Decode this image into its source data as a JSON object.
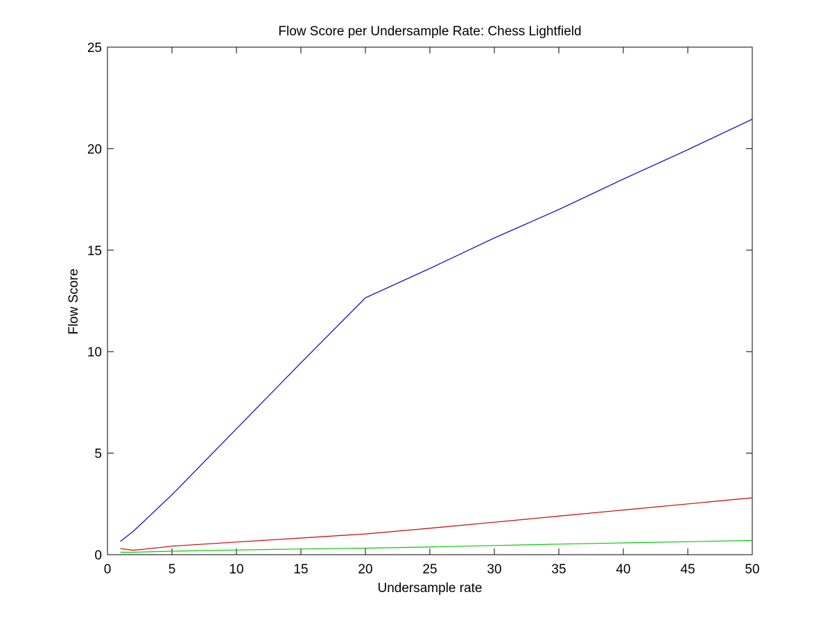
{
  "chart_data": {
    "type": "line",
    "title": "Flow Score per Undersample Rate: Chess Lightfield",
    "xlabel": "Undersample rate",
    "ylabel": "Flow Score",
    "xlim": [
      0,
      50
    ],
    "ylim": [
      0,
      25
    ],
    "xticks": [
      0,
      5,
      10,
      15,
      20,
      25,
      30,
      35,
      40,
      45,
      50
    ],
    "yticks": [
      0,
      5,
      10,
      15,
      20,
      25
    ],
    "grid": false,
    "legend": "none",
    "series": [
      {
        "color": "#0000cc",
        "x": [
          1,
          2,
          3,
          4,
          5,
          10,
          15,
          20,
          25,
          30,
          35,
          40,
          45,
          50
        ],
        "y": [
          0.65,
          1.15,
          1.75,
          2.35,
          2.95,
          6.2,
          9.45,
          12.65,
          14.1,
          15.6,
          17.0,
          18.5,
          19.95,
          21.45
        ]
      },
      {
        "color": "#cc0000",
        "x": [
          1,
          2,
          3,
          5,
          10,
          15,
          20,
          25,
          30,
          35,
          40,
          45,
          50
        ],
        "y": [
          0.3,
          0.22,
          0.28,
          0.42,
          0.62,
          0.82,
          1.02,
          1.3,
          1.6,
          1.9,
          2.2,
          2.5,
          2.8
        ]
      },
      {
        "color": "#00cc00",
        "x": [
          1,
          2,
          5,
          10,
          15,
          20,
          25,
          30,
          35,
          40,
          45,
          50
        ],
        "y": [
          0.12,
          0.12,
          0.17,
          0.23,
          0.28,
          0.32,
          0.38,
          0.45,
          0.52,
          0.58,
          0.64,
          0.7
        ]
      }
    ]
  }
}
